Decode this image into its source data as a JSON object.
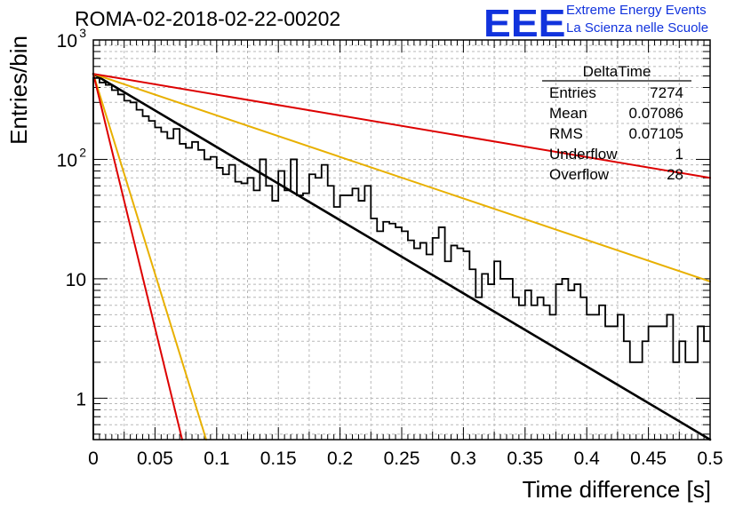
{
  "header": {
    "title": "ROMA-02-2018-02-22-00202",
    "logo": "EEE",
    "logo_line1": "Extreme Energy Events",
    "logo_line2": "La Scienza nelle Scuole"
  },
  "stats_box": {
    "title": "DeltaTime",
    "rows": [
      {
        "label": "Entries",
        "value": "7274"
      },
      {
        "label": "Mean",
        "value": "0.07086"
      },
      {
        "label": "RMS",
        "value": "0.07105"
      },
      {
        "label": "Underflow",
        "value": "1"
      },
      {
        "label": "Overflow",
        "value": "28"
      }
    ]
  },
  "chart_data": {
    "type": "line",
    "xlabel": "Time difference [s]",
    "ylabel": "Entries/bin",
    "xlim": [
      0,
      0.5
    ],
    "ylim": [
      0.45,
      1000
    ],
    "y_scale": "log",
    "grid": true,
    "x_ticks": [
      0,
      0.05,
      0.1,
      0.15,
      0.2,
      0.25,
      0.3,
      0.35,
      0.4,
      0.45,
      0.5
    ],
    "x_tick_labels": [
      "0",
      "0.05",
      "0.1",
      "0.15",
      "0.2",
      "0.25",
      "0.3",
      "0.35",
      "0.4",
      "0.45",
      "0.5"
    ],
    "y_tick_labels": [
      {
        "value": 1,
        "label": "1"
      },
      {
        "value": 10,
        "label": "10"
      },
      {
        "value": 100,
        "label": "10",
        "exp": "2"
      },
      {
        "value": 1000,
        "label": "10",
        "exp": "3"
      }
    ],
    "histogram": {
      "bin_width": 0.005,
      "color": "#000000",
      "values": [
        480,
        440,
        420,
        380,
        350,
        310,
        300,
        260,
        230,
        210,
        185,
        170,
        150,
        180,
        135,
        125,
        140,
        120,
        100,
        105,
        85,
        75,
        90,
        65,
        63,
        70,
        55,
        100,
        60,
        45,
        80,
        55,
        100,
        50,
        52,
        75,
        70,
        90,
        60,
        40,
        50,
        50,
        57,
        45,
        60,
        32,
        25,
        30,
        29,
        27,
        25,
        21,
        18,
        20,
        16,
        22,
        27,
        14,
        19,
        18,
        17,
        12,
        7,
        11,
        9,
        14,
        10,
        10,
        7,
        6,
        8,
        6,
        7,
        6,
        5,
        9,
        10,
        8,
        9,
        7,
        5,
        5,
        6,
        4,
        4,
        5,
        3,
        2,
        2,
        3,
        4,
        4,
        4,
        5,
        2,
        3,
        2,
        2,
        4,
        3
      ]
    },
    "fits": [
      {
        "color": "#000000",
        "y0": 520,
        "y_end": 0.44
      },
      {
        "color": "#e8b000",
        "y0": 520,
        "y_end": 9.5
      },
      {
        "color": "#dd0000",
        "y0": 520,
        "y_end": 70
      },
      {
        "color": "#e8b000",
        "y0": 520,
        "x_end": 0.0915,
        "y_at_end": 0.45
      },
      {
        "color": "#dd0000",
        "y0": 520,
        "x_end": 0.072,
        "y_at_end": 0.45
      }
    ]
  }
}
